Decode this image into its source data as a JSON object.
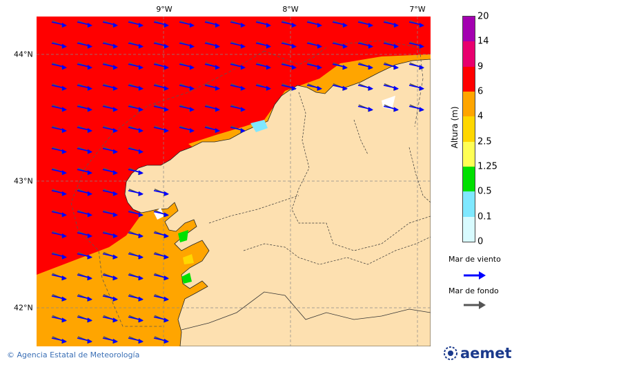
{
  "map": {
    "lon_ticks": [
      "9°W",
      "8°W",
      "7°W"
    ],
    "lat_ticks": [
      "44°N",
      "43°N",
      "42°N"
    ],
    "colors": {
      "sea_red": "#ff0000",
      "sea_orange": "#ffa500",
      "sea_yellow": "#ffd700",
      "land": "#fde0b0"
    }
  },
  "colorbar": {
    "unit_label": "Altura (m)",
    "levels": [
      "20",
      "14",
      "9",
      "6",
      "4",
      "2.5",
      "1.25",
      "0.5",
      "0.1",
      "0"
    ],
    "colors": [
      "#a300b0",
      "#e8006e",
      "#e80000",
      "#ff0000",
      "#ffa500",
      "#ffd700",
      "#ffff55",
      "#00e000",
      "#7fe8ff",
      "#d8fbff"
    ]
  },
  "legend": {
    "wind_sea_label": "Mar de viento",
    "wind_sea_color": "#0000ff",
    "swell_label": "Mar de fondo",
    "swell_color": "#555555"
  },
  "footer": {
    "copyright": "© Agencia Estatal de Meteorología",
    "logo_text": "aemet"
  }
}
